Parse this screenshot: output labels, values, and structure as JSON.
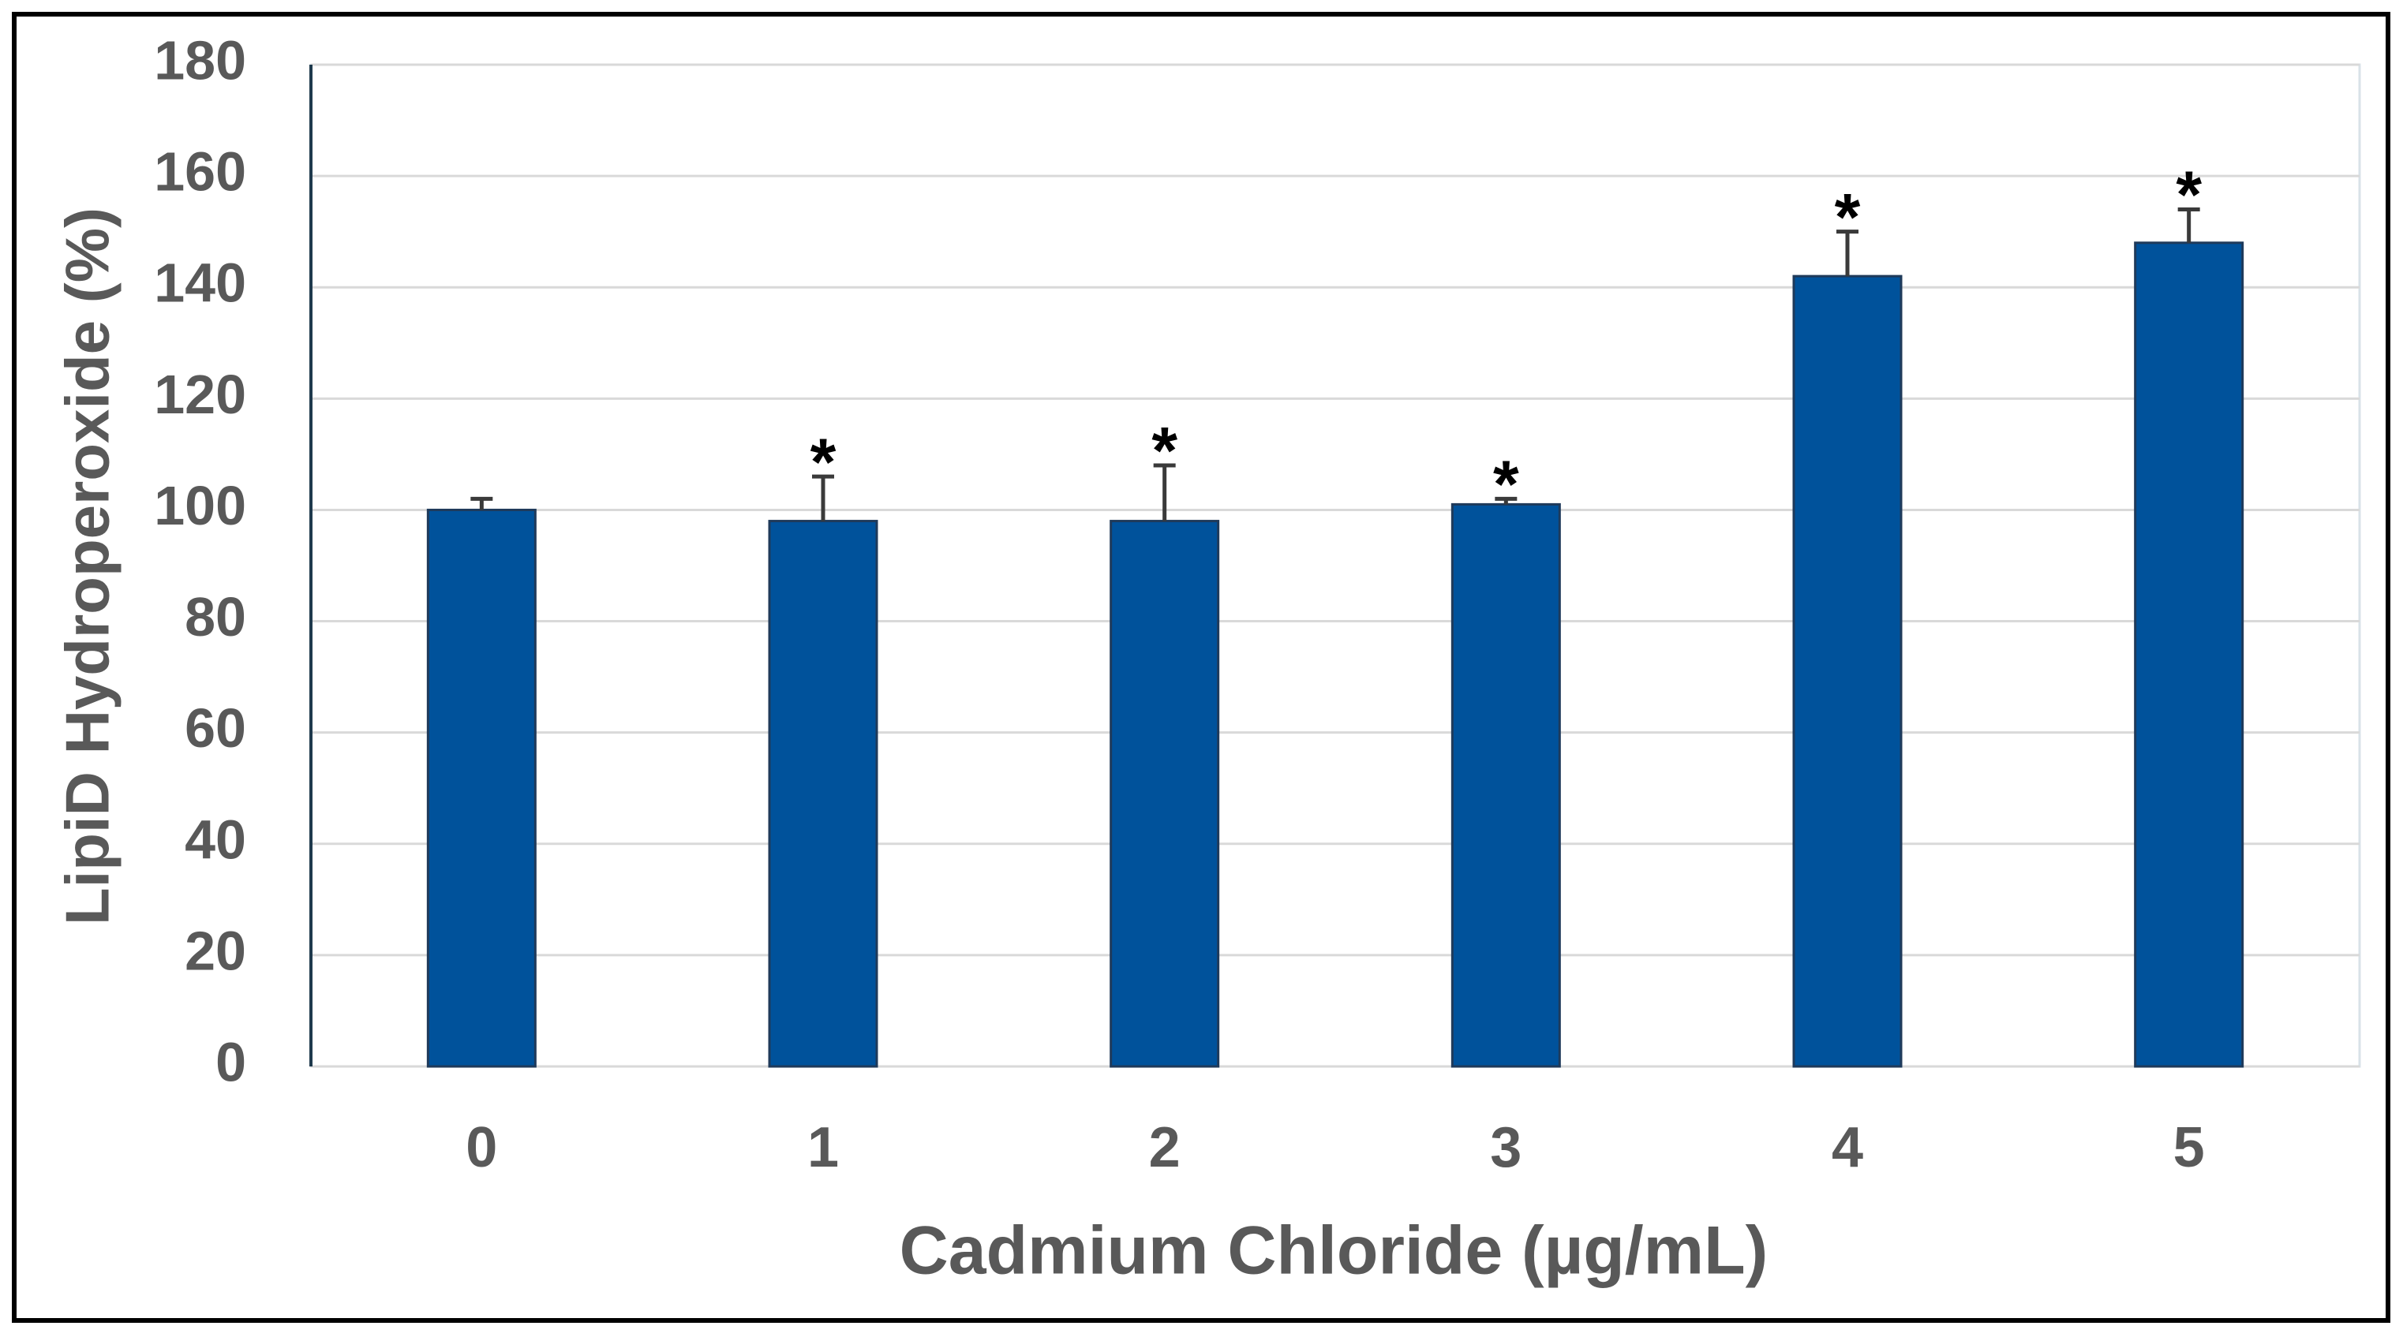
{
  "chart_data": {
    "type": "bar",
    "x_label": "Cadmium Chloride (µg/mL)",
    "y_label": "LipiD Hydroperoxide (%)",
    "categories": [
      "0",
      "1",
      "2",
      "3",
      "4",
      "5"
    ],
    "values": [
      100,
      98,
      98,
      101,
      142,
      148
    ],
    "errors": [
      2,
      8,
      10,
      1,
      8,
      6
    ],
    "markers": [
      null,
      "*",
      "*",
      "*",
      "*",
      "*"
    ],
    "color": "#00529b",
    "ylim": [
      0,
      180
    ],
    "yticks": [
      0,
      20,
      40,
      60,
      80,
      100,
      120,
      140,
      160,
      180
    ],
    "grid": true
  }
}
